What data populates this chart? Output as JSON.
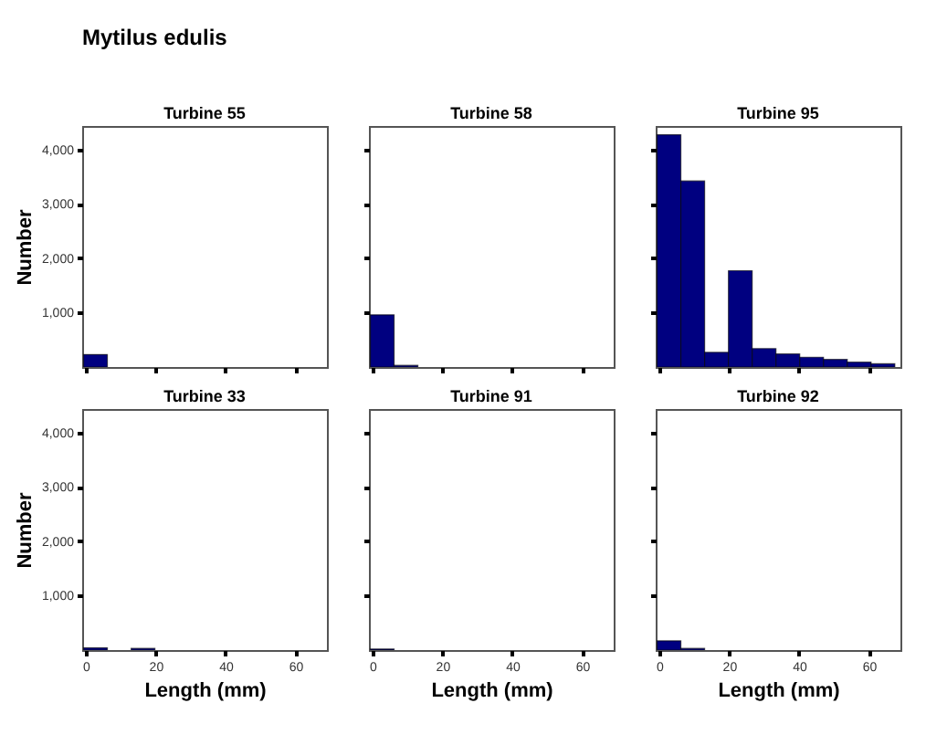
{
  "chart_data": [
    {
      "type": "histogram",
      "title": "Mytilus edulis",
      "subtitle": "Turbine 55",
      "ylabel": "Number",
      "bins": [
        -0.6,
        6.2,
        13,
        19.8,
        26.6,
        33.4,
        40.2,
        47,
        53.8,
        60.6,
        67.4
      ],
      "values": [
        230,
        0,
        0,
        0,
        0,
        0,
        0,
        0,
        0,
        0
      ],
      "color": "#000080",
      "xlim": [
        -1,
        69
      ],
      "xticks": [
        {
          "value": 0,
          "label": null
        },
        {
          "value": 20,
          "label": null
        },
        {
          "value": 40,
          "label": null
        },
        {
          "value": 60,
          "label": null
        }
      ],
      "ylim": [
        0,
        4430
      ],
      "yticks": [
        {
          "value": 1000,
          "label": "1,000"
        },
        {
          "value": 2000,
          "label": "2,000"
        },
        {
          "value": 3000,
          "label": "3,000"
        },
        {
          "value": 4000,
          "label": "4,000"
        }
      ],
      "tick_labels": "y"
    },
    {
      "type": "histogram",
      "subtitle": "Turbine 58",
      "bins": [
        -0.6,
        6.2,
        13,
        19.8,
        26.6,
        33.4,
        40.2,
        47,
        53.8,
        60.6,
        67.4
      ],
      "values": [
        960,
        30,
        0,
        0,
        0,
        0,
        0,
        0,
        0,
        0
      ],
      "color": "#000080",
      "xlim": [
        -1,
        69
      ],
      "xticks": [
        {
          "value": 0,
          "label": null
        },
        {
          "value": 20,
          "label": null
        },
        {
          "value": 40,
          "label": null
        },
        {
          "value": 60,
          "label": null
        }
      ],
      "ylim": [
        0,
        4430
      ],
      "yticks": [
        {
          "value": 1000,
          "label": null
        },
        {
          "value": 2000,
          "label": null
        },
        {
          "value": 3000,
          "label": null
        },
        {
          "value": 4000,
          "label": null
        }
      ],
      "tick_labels": false
    },
    {
      "type": "histogram",
      "subtitle": "Turbine 95",
      "bins": [
        -0.6,
        6.2,
        13,
        19.8,
        26.6,
        33.4,
        40.2,
        47,
        53.8,
        60.6,
        67.4
      ],
      "values": [
        4270,
        3420,
        270,
        1770,
        340,
        240,
        180,
        140,
        90,
        60
      ],
      "color": "#000080",
      "xlim": [
        -1,
        69
      ],
      "xticks": [
        {
          "value": 0,
          "label": null
        },
        {
          "value": 20,
          "label": null
        },
        {
          "value": 40,
          "label": null
        },
        {
          "value": 60,
          "label": null
        }
      ],
      "ylim": [
        0,
        4430
      ],
      "yticks": [
        {
          "value": 1000,
          "label": null
        },
        {
          "value": 2000,
          "label": null
        },
        {
          "value": 3000,
          "label": null
        },
        {
          "value": 4000,
          "label": null
        }
      ],
      "tick_labels": false
    },
    {
      "type": "histogram",
      "subtitle": "Turbine 33",
      "xlabel": "Length (mm)",
      "ylabel": "Number",
      "bins": [
        -0.6,
        6.2,
        13,
        19.8,
        26.6,
        33.4,
        40.2,
        47,
        53.8,
        60.6,
        67.4
      ],
      "values": [
        40,
        0,
        30,
        0,
        0,
        0,
        0,
        0,
        0,
        0
      ],
      "color": "#000080",
      "xlim": [
        -1,
        69
      ],
      "xticks": [
        0,
        20,
        40,
        60
      ],
      "ylim": [
        0,
        4430
      ],
      "yticks": [
        {
          "value": 1000,
          "label": "1,000"
        },
        {
          "value": 2000,
          "label": "2,000"
        },
        {
          "value": 3000,
          "label": "3,000"
        },
        {
          "value": 4000,
          "label": "4,000"
        }
      ]
    },
    {
      "type": "histogram",
      "subtitle": "Turbine 91",
      "xlabel": "Length (mm)",
      "bins": [
        -0.6,
        6.2,
        13,
        19.8,
        26.6,
        33.4,
        40.2,
        47,
        53.8,
        60.6,
        67.4
      ],
      "values": [
        20,
        0,
        0,
        0,
        0,
        0,
        0,
        0,
        0,
        0
      ],
      "color": "#000080",
      "xlim": [
        -1,
        69
      ],
      "xticks": [
        0,
        20,
        40,
        60
      ],
      "ylim": [
        0,
        4430
      ],
      "yticks": [
        {
          "value": 1000,
          "label": null
        },
        {
          "value": 2000,
          "label": null
        },
        {
          "value": 3000,
          "label": null
        },
        {
          "value": 4000,
          "label": null
        }
      ],
      "tick_labels": "x"
    },
    {
      "type": "histogram",
      "subtitle": "Turbine 92",
      "xlabel": "Length (mm)",
      "bins": [
        -0.6,
        6.2,
        13,
        19.8,
        26.6,
        33.4,
        40.2,
        47,
        53.8,
        60.6,
        67.4
      ],
      "values": [
        170,
        30,
        0,
        0,
        0,
        0,
        0,
        0,
        0,
        0
      ],
      "color": "#000080",
      "xlim": [
        -1,
        69
      ],
      "xticks": [
        0,
        20,
        40,
        60
      ],
      "ylim": [
        0,
        4430
      ],
      "yticks": [
        {
          "value": 1000,
          "label": null
        },
        {
          "value": 2000,
          "label": null
        },
        {
          "value": 3000,
          "label": null
        },
        {
          "value": 4000,
          "label": null
        }
      ],
      "tick_labels": "x"
    }
  ]
}
